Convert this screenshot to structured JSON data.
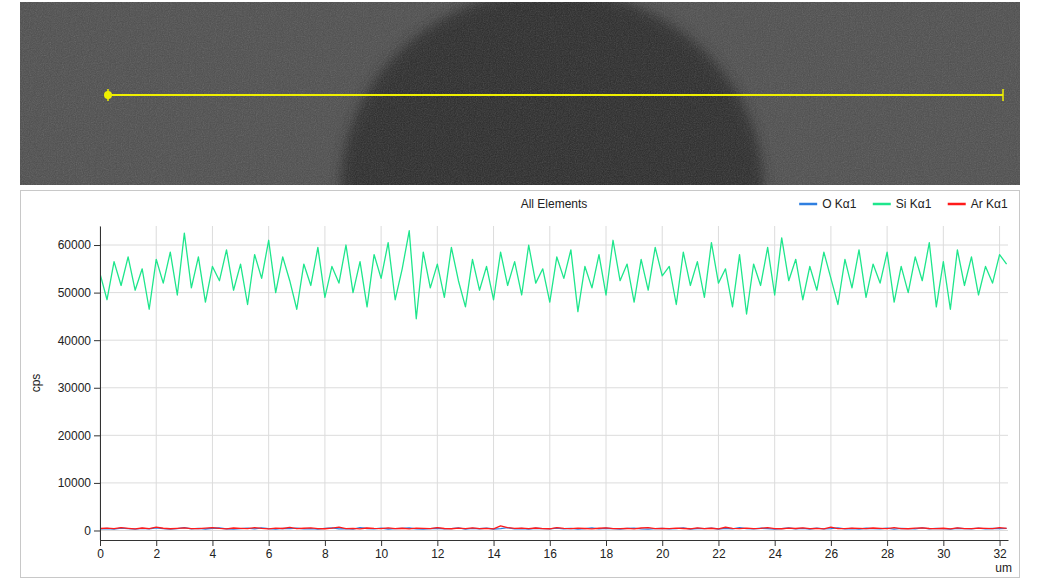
{
  "chart_data": {
    "type": "line",
    "title": "All Elements",
    "x_label": "um",
    "y_label": "cps",
    "x": [
      0,
      0.25,
      0.5,
      0.75,
      1,
      1.25,
      1.5,
      1.75,
      2,
      2.25,
      2.5,
      2.75,
      3,
      3.25,
      3.5,
      3.75,
      4,
      4.25,
      4.5,
      4.75,
      5,
      5.25,
      5.5,
      5.75,
      6,
      6.25,
      6.5,
      6.75,
      7,
      7.25,
      7.5,
      7.75,
      8,
      8.25,
      8.5,
      8.75,
      9,
      9.25,
      9.5,
      9.75,
      10,
      10.25,
      10.5,
      10.75,
      11,
      11.25,
      11.5,
      11.75,
      12,
      12.25,
      12.5,
      12.75,
      13,
      13.25,
      13.5,
      13.75,
      14,
      14.25,
      14.5,
      14.75,
      15,
      15.25,
      15.5,
      15.75,
      16,
      16.25,
      16.5,
      16.75,
      17,
      17.25,
      17.5,
      17.75,
      18,
      18.25,
      18.5,
      18.75,
      19,
      19.25,
      19.5,
      19.75,
      20,
      20.25,
      20.5,
      20.75,
      21,
      21.25,
      21.5,
      21.75,
      22,
      22.25,
      22.5,
      22.75,
      23,
      23.25,
      23.5,
      23.75,
      24,
      24.25,
      24.5,
      24.75,
      25,
      25.25,
      25.5,
      25.75,
      26,
      26.25,
      26.5,
      26.75,
      27,
      27.25,
      27.5,
      27.75,
      28,
      28.25,
      28.5,
      28.75,
      29,
      29.25,
      29.5,
      29.75,
      30,
      30.25,
      30.5,
      30.75,
      31,
      31.25,
      31.5,
      31.75,
      32,
      32.25
    ],
    "series": [
      {
        "name": "O Kα1",
        "color": "#2f7fe0",
        "values": [
          350,
          420,
          280,
          510,
          390,
          300,
          460,
          330,
          540,
          410,
          290,
          380,
          600,
          350,
          430,
          310,
          470,
          520,
          360,
          290,
          410,
          480,
          330,
          560,
          390,
          300,
          440,
          370,
          500,
          320,
          410,
          280,
          460,
          530,
          350,
          390,
          300,
          620,
          420,
          340,
          480,
          310,
          390,
          450,
          520,
          360,
          290,
          410,
          470,
          330,
          380,
          540,
          300,
          430,
          360,
          490,
          310,
          400,
          580,
          350,
          420,
          300,
          470,
          390,
          330,
          510,
          360,
          440,
          290,
          400,
          560,
          340,
          470,
          380,
          310,
          430,
          500,
          350,
          290,
          410,
          460,
          330,
          390,
          540,
          300,
          420,
          370,
          480,
          310,
          450,
          350,
          600,
          390,
          330,
          470,
          410,
          290,
          380,
          520,
          360,
          440,
          310,
          490,
          350,
          400,
          560,
          330,
          420,
          300,
          470,
          380,
          350,
          510,
          290,
          430,
          400,
          360,
          540,
          320,
          450,
          380,
          300,
          470,
          410,
          350,
          490,
          330,
          420,
          380,
          460
        ]
      },
      {
        "name": "Si Kα1",
        "color": "#1ee68c",
        "values": [
          54000,
          48500,
          56500,
          51500,
          57500,
          50500,
          55000,
          46500,
          57000,
          52000,
          58500,
          49500,
          62500,
          51000,
          57500,
          48000,
          55500,
          52500,
          59000,
          50500,
          56000,
          47500,
          58000,
          53000,
          61000,
          50000,
          57500,
          52500,
          46500,
          56000,
          51500,
          59500,
          49000,
          55500,
          52000,
          60000,
          50000,
          56500,
          47000,
          58000,
          53000,
          60500,
          48500,
          55000,
          63000,
          44500,
          58500,
          51000,
          56000,
          49000,
          59500,
          52500,
          47000,
          57000,
          50500,
          55500,
          48500,
          58500,
          51500,
          56500,
          49500,
          60000,
          52000,
          55000,
          48000,
          57500,
          53000,
          59000,
          46000,
          55500,
          51000,
          58000,
          49500,
          61000,
          52500,
          56000,
          48000,
          57000,
          50500,
          59500,
          53500,
          55500,
          47500,
          58500,
          51500,
          56500,
          49000,
          60500,
          52000,
          55000,
          47000,
          58000,
          45500,
          56000,
          51500,
          59500,
          49500,
          61500,
          52500,
          57000,
          48500,
          55500,
          50500,
          58500,
          53000,
          47500,
          57000,
          51000,
          59000,
          49000,
          56000,
          52000,
          58500,
          48000,
          55500,
          50000,
          57500,
          52500,
          60500,
          47000,
          56500,
          46500,
          59000,
          51500,
          57500,
          49500,
          55500,
          52000,
          58000,
          56000
        ]
      },
      {
        "name": "Ar Kα1",
        "color": "#ff1a1a",
        "values": [
          420,
          510,
          380,
          600,
          450,
          330,
          520,
          400,
          700,
          470,
          360,
          450,
          550,
          410,
          380,
          490,
          620,
          430,
          350,
          520,
          460,
          390,
          580,
          440,
          350,
          500,
          420,
          660,
          380,
          470,
          530,
          410,
          360,
          480,
          720,
          390,
          450,
          350,
          520,
          430,
          400,
          560,
          380,
          470,
          330,
          510,
          440,
          380,
          600,
          420,
          360,
          490,
          410,
          540,
          380,
          450,
          350,
          950,
          620,
          430,
          480,
          370,
          520,
          410,
          360,
          590,
          440,
          380,
          500,
          420,
          350,
          470,
          540,
          400,
          380,
          460,
          330,
          520,
          610,
          410,
          450,
          380,
          500,
          420,
          360,
          560,
          400,
          470,
          350,
          680,
          430,
          390,
          510,
          370,
          450,
          620,
          400,
          360,
          480,
          420,
          540,
          380,
          460,
          350,
          700,
          410,
          390,
          500,
          430,
          370,
          520,
          450,
          380,
          610,
          400,
          360,
          480,
          530,
          420,
          390,
          470,
          350,
          560,
          410,
          380,
          500,
          440,
          370,
          620,
          450
        ]
      }
    ],
    "xlim": [
      0,
      32.3
    ],
    "xticks": [
      0,
      2,
      4,
      6,
      8,
      10,
      12,
      14,
      16,
      18,
      20,
      22,
      24,
      26,
      28,
      30,
      32
    ],
    "ylim": [
      -2000,
      64000
    ],
    "yticks": [
      0,
      10000,
      20000,
      30000,
      40000,
      50000,
      60000
    ],
    "grid": true,
    "legend": "top"
  }
}
